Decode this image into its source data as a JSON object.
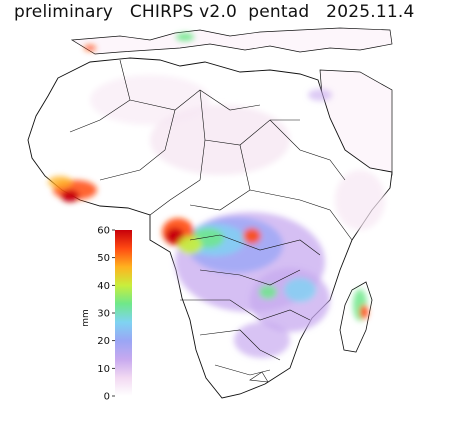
{
  "title": "preliminary   CHIRPS v2.0  pentad   2025.11.4",
  "colorbar": {
    "unit": "mm",
    "min": 0,
    "max": 60,
    "ticks": [
      "0",
      "10",
      "20",
      "30",
      "40",
      "50",
      "60"
    ],
    "colors": [
      "#ffffff",
      "#f2d9f2",
      "#c7a9ef",
      "#9aa6f5",
      "#7fd3f2",
      "#6fe88a",
      "#c9ee3c",
      "#ffb21f",
      "#ff4a12",
      "#c8000a"
    ]
  },
  "colors": {
    "land": "#ffffff",
    "borders": "#111111",
    "light_rain": "#f6e7f3"
  }
}
